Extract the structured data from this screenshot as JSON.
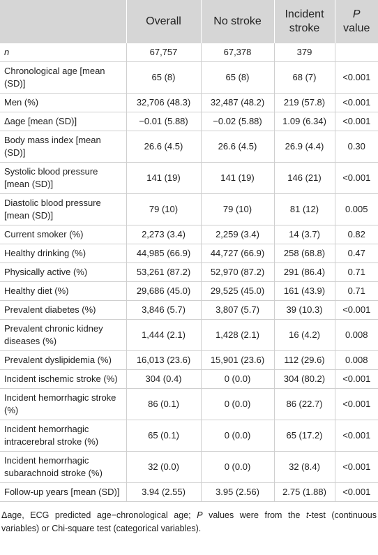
{
  "table": {
    "header": {
      "columns": [
        "Overall",
        "No stroke",
        "Incident stroke"
      ],
      "p_italic": "P",
      "p_rest": "value"
    },
    "rows": [
      [
        "n",
        "67,757",
        "67,378",
        "379"
      ],
      [
        "Chronological age [mean (SD)]",
        "65 (8)",
        "65 (8)",
        "68 (7)",
        "<0.001"
      ],
      [
        "Men (%)",
        "32,706 (48.3)",
        "32,487 (48.2)",
        "219 (57.8)",
        "<0.001"
      ],
      [
        "Δage [mean (SD)]",
        "−0.01 (5.88)",
        "−0.02 (5.88)",
        "1.09 (6.34)",
        "<0.001"
      ],
      [
        "Body mass index [mean (SD)]",
        "26.6 (4.5)",
        "26.6 (4.5)",
        "26.9 (4.4)",
        "0.30"
      ],
      [
        "Systolic blood pressure [mean (SD)]",
        "141 (19)",
        "141 (19)",
        "146 (21)",
        "<0.001"
      ],
      [
        "Diastolic blood pressure [mean (SD)]",
        "79 (10)",
        "79 (10)",
        "81 (12)",
        "0.005"
      ],
      [
        "Current smoker (%)",
        "2,273 (3.4)",
        "2,259 (3.4)",
        "14 (3.7)",
        "0.82"
      ],
      [
        "Healthy drinking (%)",
        "44,985 (66.9)",
        "44,727 (66.9)",
        "258 (68.8)",
        "0.47"
      ],
      [
        "Physically active (%)",
        "53,261 (87.2)",
        "52,970 (87.2)",
        "291 (86.4)",
        "0.71"
      ],
      [
        "Healthy diet (%)",
        "29,686 (45.0)",
        "29,525 (45.0)",
        "161 (43.9)",
        "0.71"
      ],
      [
        "Prevalent diabetes (%)",
        "3,846 (5.7)",
        "3,807 (5.7)",
        "39 (10.3)",
        "<0.001"
      ],
      [
        "Prevalent chronic kidney diseases (%)",
        "1,444 (2.1)",
        "1,428 (2.1)",
        "16 (4.2)",
        "0.008"
      ],
      [
        "Prevalent dyslipidemia (%)",
        "16,013 (23.6)",
        "15,901 (23.6)",
        "112 (29.6)",
        "0.008"
      ],
      [
        "Incident ischemic stroke (%)",
        "304 (0.4)",
        "0 (0.0)",
        "304 (80.2)",
        "<0.001"
      ],
      [
        "Incident hemorrhagic stroke (%)",
        "86 (0.1)",
        "0 (0.0)",
        "86 (22.7)",
        "<0.001"
      ],
      [
        "Incident hemorrhagic intracerebral stroke (%)",
        "65 (0.1)",
        "0 (0.0)",
        "65 (17.2)",
        "<0.001"
      ],
      [
        "Incident hemorrhagic subarachnoid stroke (%)",
        "32 (0.0)",
        "0 (0.0)",
        "32 (8.4)",
        "<0.001"
      ],
      [
        "Follow-up years [mean (SD)]",
        "3.94 (2.55)",
        "3.95 (2.56)",
        "2.75 (1.88)",
        "<0.001"
      ]
    ]
  },
  "footnote": [
    "Δage, ECG predicted age−chronological age; ",
    "P",
    " values were from the ",
    "t",
    "-test (continuous variables) or Chi-square test (categorical variables)."
  ]
}
